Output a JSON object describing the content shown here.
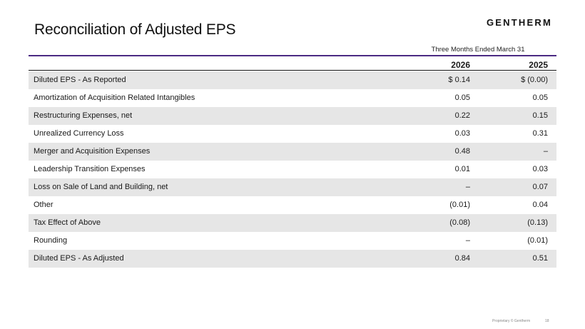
{
  "header": {
    "title": "Reconciliation of Adjusted EPS",
    "logo_text": "GENTHERM"
  },
  "table": {
    "period": "Three Months Ended March 31",
    "columns": [
      "2026",
      "2025"
    ],
    "rows": [
      {
        "label": "Diluted EPS - As Reported",
        "v2026": "$ 0.14",
        "v2025": "$ (0.00)"
      },
      {
        "label": "Amortization of Acquisition Related Intangibles",
        "v2026": "0.05",
        "v2025": "0.05"
      },
      {
        "label": "Restructuring Expenses, net",
        "v2026": "0.22",
        "v2025": "0.15"
      },
      {
        "label": "Unrealized Currency Loss",
        "v2026": "0.03",
        "v2025": "0.31"
      },
      {
        "label": "Merger and Acquisition Expenses",
        "v2026": "0.48",
        "v2025": "–"
      },
      {
        "label": "Leadership Transition Expenses",
        "v2026": "0.01",
        "v2025": "0.03"
      },
      {
        "label": "Loss on Sale of Land and Building, net",
        "v2026": "–",
        "v2025": "0.07"
      },
      {
        "label": "Other",
        "v2026": "(0.01)",
        "v2025": "0.04"
      },
      {
        "label": "Tax Effect of Above",
        "v2026": "(0.08)",
        "v2025": "(0.13)"
      },
      {
        "label": "Rounding",
        "v2026": "–",
        "v2025": "(0.01)"
      },
      {
        "label": "Diluted EPS - As Adjusted",
        "v2026": "0.84",
        "v2025": "0.51"
      }
    ]
  },
  "footer": {
    "text": "Proprietary © Gentherm",
    "page": "18"
  }
}
